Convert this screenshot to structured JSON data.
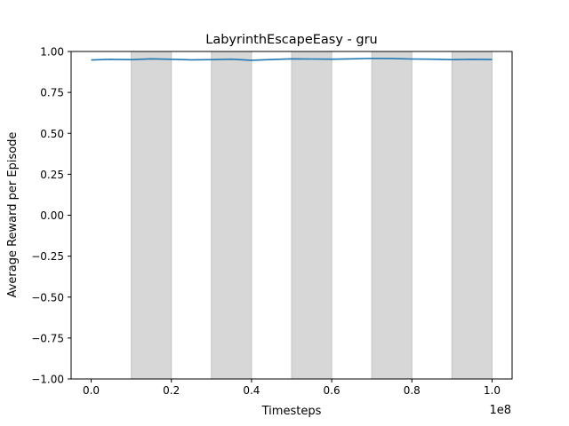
{
  "chart_data": {
    "type": "line",
    "title": "LabyrinthEscapeEasy - gru",
    "xlabel": "Timesteps",
    "ylabel": "Average Reward per Episode",
    "x_offset_label": "1e8",
    "xlim": [
      -0.05,
      1.05
    ],
    "ylim": [
      -1.0,
      1.0
    ],
    "x_scale_factor": 100000000,
    "x_ticks": [
      0.0,
      0.2,
      0.4,
      0.6,
      0.8,
      1.0
    ],
    "x_tick_labels": [
      "0.0",
      "0.2",
      "0.4",
      "0.6",
      "0.8",
      "1.0"
    ],
    "y_ticks": [
      -1.0,
      -0.75,
      -0.5,
      -0.25,
      0.0,
      0.25,
      0.5,
      0.75,
      1.0
    ],
    "y_tick_labels": [
      "−1.00",
      "−0.75",
      "−0.50",
      "−0.25",
      "0.00",
      "0.25",
      "0.50",
      "0.75",
      "1.00"
    ],
    "grid": false,
    "legend": "none",
    "shaded_spans": [
      [
        0.1,
        0.2
      ],
      [
        0.3,
        0.4
      ],
      [
        0.5,
        0.6
      ],
      [
        0.7,
        0.8
      ],
      [
        0.9,
        1.0
      ]
    ],
    "shade_color": "#d7d7d7",
    "series": [
      {
        "color": "#1f77b4",
        "x": [
          0.0,
          0.05,
          0.1,
          0.15,
          0.2,
          0.25,
          0.3,
          0.35,
          0.4,
          0.45,
          0.5,
          0.55,
          0.6,
          0.65,
          0.7,
          0.75,
          0.8,
          0.85,
          0.9,
          0.95,
          1.0
        ],
        "y": [
          0.948,
          0.952,
          0.95,
          0.955,
          0.952,
          0.949,
          0.95,
          0.953,
          0.946,
          0.951,
          0.955,
          0.954,
          0.953,
          0.955,
          0.958,
          0.957,
          0.954,
          0.953,
          0.95,
          0.952,
          0.951
        ]
      }
    ]
  }
}
